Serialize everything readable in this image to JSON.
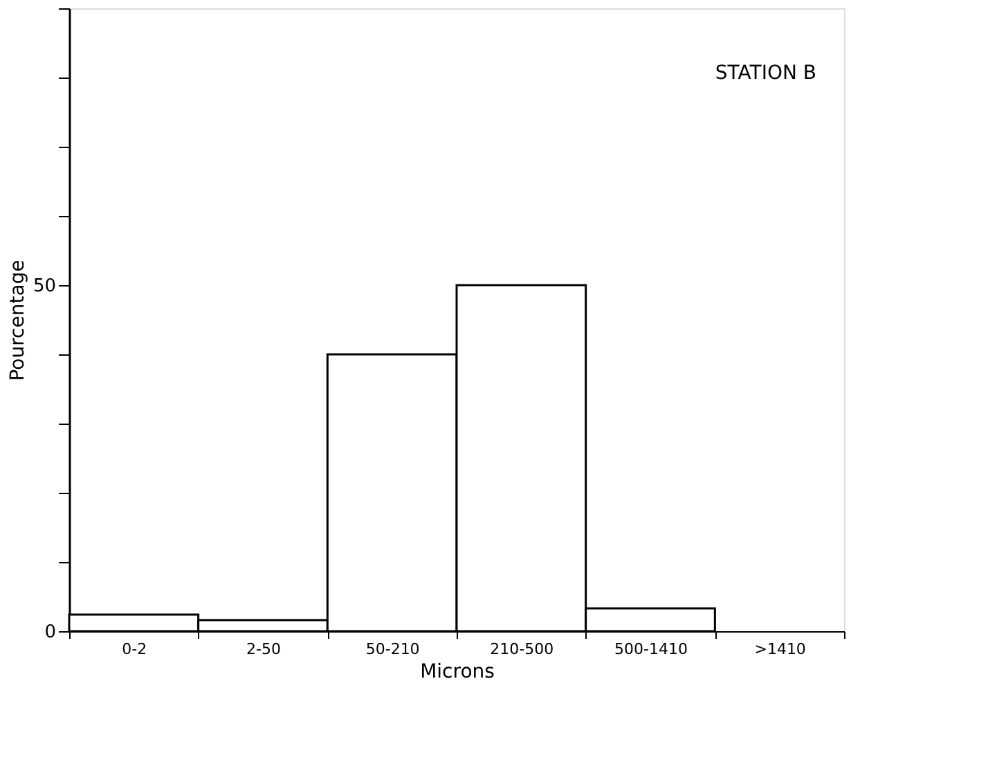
{
  "chart_data": {
    "type": "bar",
    "categories": [
      "0-2",
      "2-50",
      "50-210",
      "210-500",
      "500-1410",
      ">1410"
    ],
    "values": [
      2.4,
      1.6,
      40,
      50,
      3.3,
      0
    ],
    "color": "#ffffff",
    "xlabel": "Microns",
    "ylabel": "Pourcentage",
    "ylim": [
      0,
      90
    ],
    "yticks": [
      0,
      {
        "value": 10,
        "label": null
      },
      {
        "value": 20,
        "label": null
      },
      {
        "value": 30,
        "label": null
      },
      {
        "value": 40,
        "label": null
      },
      50,
      {
        "value": 60,
        "label": null
      },
      {
        "value": 70,
        "label": null
      },
      {
        "value": 80,
        "label": null
      },
      {
        "value": 90,
        "label": null
      }
    ],
    "annotations": [
      "STATION B"
    ],
    "grid": false
  }
}
